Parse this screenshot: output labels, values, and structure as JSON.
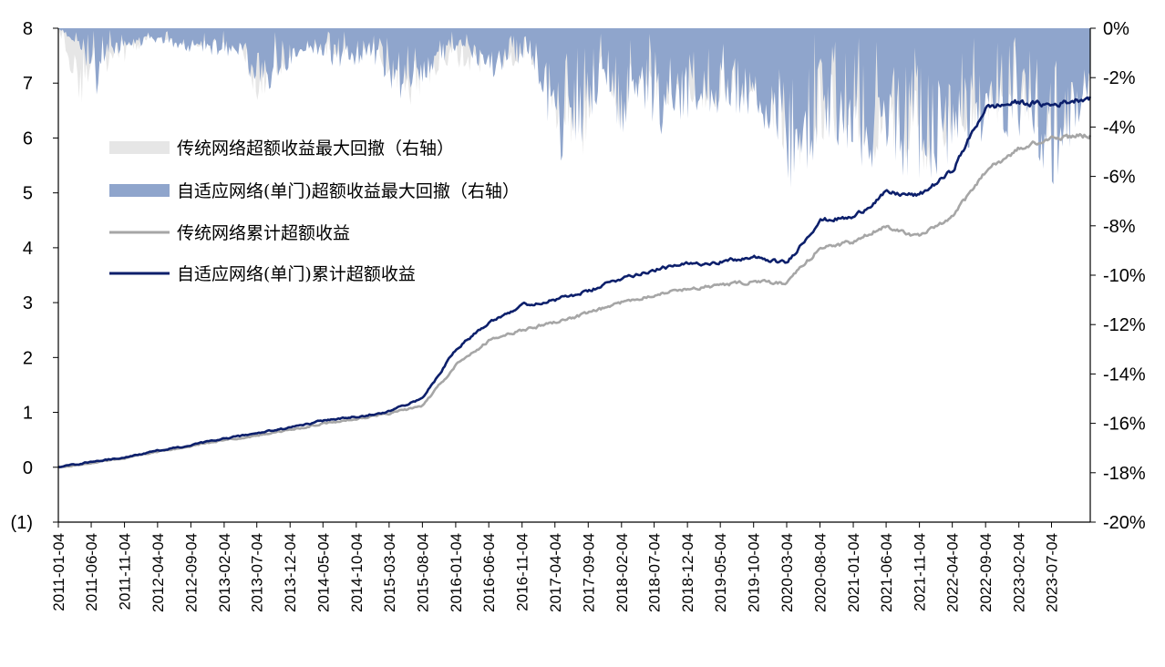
{
  "chart_data": {
    "type": "line",
    "title": "",
    "xlabel": "",
    "ylabel": "",
    "y_left": {
      "ylim": [
        -1,
        8
      ],
      "ticks": [
        -1,
        0,
        1,
        2,
        3,
        4,
        5,
        6,
        7,
        8
      ],
      "tick_labels": [
        "(1)",
        "0",
        "1",
        "2",
        "3",
        "4",
        "5",
        "6",
        "7",
        "8"
      ]
    },
    "y_right": {
      "ylim": [
        -20,
        0
      ],
      "unit": "%",
      "ticks": [
        0,
        -2,
        -4,
        -6,
        -8,
        -10,
        -12,
        -14,
        -16,
        -18,
        -20
      ],
      "tick_labels": [
        "0%",
        "-2%",
        "-4%",
        "-6%",
        "-8%",
        "-10%",
        "-12%",
        "-14%",
        "-16%",
        "-18%",
        "-20%"
      ]
    },
    "x_range": [
      "2011-01-04",
      "2023-12-29"
    ],
    "x_ticks": [
      "2011-01-04",
      "2011-06-04",
      "2011-11-04",
      "2012-04-04",
      "2012-09-04",
      "2013-02-04",
      "2013-07-04",
      "2013-12-04",
      "2014-05-04",
      "2014-10-04",
      "2015-03-04",
      "2015-08-04",
      "2016-01-04",
      "2016-06-04",
      "2016-11-04",
      "2017-04-04",
      "2017-09-04",
      "2018-02-04",
      "2018-07-04",
      "2018-12-04",
      "2019-05-04",
      "2019-10-04",
      "2020-03-04",
      "2020-08-04",
      "2021-01-04",
      "2021-06-04",
      "2021-11-04",
      "2022-04-04",
      "2022-09-04",
      "2023-02-04",
      "2023-07-04"
    ],
    "grid": false,
    "legend_position": "left-top",
    "series": [
      {
        "name": "传统网络超额收益最大回撤（右轴）",
        "kind": "drawdown-area",
        "axis": "right",
        "color": "#e6e6e6",
        "x": [
          "2011-01-04",
          "2011-04-20",
          "2011-06-25",
          "2011-08-20",
          "2012-03-10",
          "2012-09-15",
          "2013-05-01",
          "2013-07-01",
          "2014-02-10",
          "2014-06-25",
          "2014-12-20",
          "2015-05-01",
          "2015-07-01",
          "2015-11-01",
          "2016-07-01",
          "2016-11-30",
          "2017-05-01",
          "2017-08-10",
          "2017-11-10",
          "2018-02-10",
          "2018-03-20",
          "2018-08-01",
          "2019-03-20",
          "2019-09-01",
          "2020-02-05",
          "2020-03-25",
          "2020-09-15",
          "2021-04-01",
          "2021-06-25",
          "2021-09-15",
          "2021-12-15",
          "2022-05-01",
          "2022-10-01",
          "2023-03-01",
          "2023-07-20",
          "2023-12-29"
        ],
        "values": [
          0,
          -3.5,
          -0.6,
          -2.0,
          -0.4,
          -0.8,
          -1.0,
          -3.2,
          -0.6,
          -1.3,
          -0.8,
          -3.0,
          -3.5,
          -1.5,
          -2.0,
          -1.2,
          -4.5,
          -5.2,
          -1.5,
          -4.8,
          -2.0,
          -3.5,
          -3.5,
          -2.8,
          -4.8,
          -6.5,
          -4.5,
          -5.5,
          -4.8,
          -5.5,
          -6.0,
          -4.5,
          -3.8,
          -4.2,
          -5.5,
          -2.5
        ]
      },
      {
        "name": "自适应网络(单门)超额收益最大回撤（右轴）",
        "kind": "drawdown-area",
        "axis": "right",
        "color": "#8fa5cc",
        "x": [
          "2011-01-04",
          "2011-04-20",
          "2011-06-25",
          "2011-08-20",
          "2012-03-10",
          "2012-09-15",
          "2013-05-01",
          "2013-07-01",
          "2014-02-10",
          "2014-06-25",
          "2014-12-20",
          "2015-05-01",
          "2015-07-01",
          "2015-11-01",
          "2016-01-15",
          "2016-07-01",
          "2016-11-30",
          "2017-05-01",
          "2017-08-10",
          "2017-11-10",
          "2018-02-10",
          "2018-03-20",
          "2018-08-01",
          "2019-03-20",
          "2019-09-01",
          "2020-02-05",
          "2020-03-25",
          "2020-09-15",
          "2021-04-01",
          "2021-06-25",
          "2021-09-15",
          "2021-12-15",
          "2022-05-01",
          "2022-10-01",
          "2023-03-01",
          "2023-07-20",
          "2023-12-29"
        ],
        "values": [
          0,
          -1.0,
          -2.8,
          -1.2,
          -0.6,
          -1.0,
          -1.3,
          -3.0,
          -1.0,
          -1.6,
          -1.5,
          -3.0,
          -2.5,
          -1.5,
          -0.8,
          -2.2,
          -1.2,
          -5.5,
          -5.5,
          -2.0,
          -4.8,
          -2.5,
          -4.5,
          -3.5,
          -3.5,
          -4.8,
          -7.0,
          -4.5,
          -6.0,
          -5.5,
          -6.2,
          -6.5,
          -5.0,
          -4.5,
          -4.5,
          -6.5,
          -2.5
        ]
      },
      {
        "name": "传统网络累计超额收益",
        "kind": "line",
        "axis": "left",
        "color": "#a6a6a6",
        "x": [
          "2011-01-04",
          "2011-06-04",
          "2011-11-04",
          "2012-04-04",
          "2012-09-04",
          "2013-02-04",
          "2013-07-04",
          "2013-12-04",
          "2014-05-04",
          "2014-10-04",
          "2015-03-04",
          "2015-08-04",
          "2016-01-04",
          "2016-06-04",
          "2016-11-04",
          "2017-04-04",
          "2017-09-04",
          "2018-02-04",
          "2018-07-04",
          "2018-12-04",
          "2019-05-04",
          "2019-10-04",
          "2020-03-04",
          "2020-08-04",
          "2021-01-04",
          "2021-06-04",
          "2021-11-04",
          "2022-04-04",
          "2022-09-04",
          "2023-02-04",
          "2023-07-04",
          "2023-12-29"
        ],
        "values": [
          0,
          0.08,
          0.17,
          0.28,
          0.38,
          0.5,
          0.58,
          0.68,
          0.8,
          0.88,
          0.98,
          1.12,
          1.85,
          2.3,
          2.5,
          2.65,
          2.8,
          3.0,
          3.15,
          3.25,
          3.32,
          3.38,
          3.35,
          4.0,
          4.1,
          4.4,
          4.2,
          4.55,
          5.4,
          5.8,
          6.0,
          6.05
        ]
      },
      {
        "name": "自适应网络(单门)累计超额收益",
        "kind": "line",
        "axis": "left",
        "color": "#0c1f6b",
        "x": [
          "2011-01-04",
          "2011-06-04",
          "2011-11-04",
          "2012-04-04",
          "2012-09-04",
          "2013-02-04",
          "2013-07-04",
          "2013-12-04",
          "2014-05-04",
          "2014-10-04",
          "2015-03-04",
          "2015-08-04",
          "2016-01-04",
          "2016-06-04",
          "2016-11-04",
          "2017-04-04",
          "2017-09-04",
          "2018-02-04",
          "2018-07-04",
          "2018-12-04",
          "2019-05-04",
          "2019-10-04",
          "2020-03-04",
          "2020-08-04",
          "2021-01-04",
          "2021-06-04",
          "2021-11-04",
          "2022-04-04",
          "2022-09-04",
          "2023-02-04",
          "2023-07-04",
          "2023-12-29"
        ],
        "values": [
          0,
          0.1,
          0.18,
          0.3,
          0.4,
          0.52,
          0.62,
          0.72,
          0.85,
          0.92,
          1.02,
          1.25,
          2.15,
          2.65,
          2.95,
          3.05,
          3.2,
          3.45,
          3.6,
          3.7,
          3.75,
          3.82,
          3.72,
          4.5,
          4.55,
          5.0,
          4.95,
          5.4,
          6.55,
          6.65,
          6.6,
          6.75
        ]
      }
    ]
  }
}
